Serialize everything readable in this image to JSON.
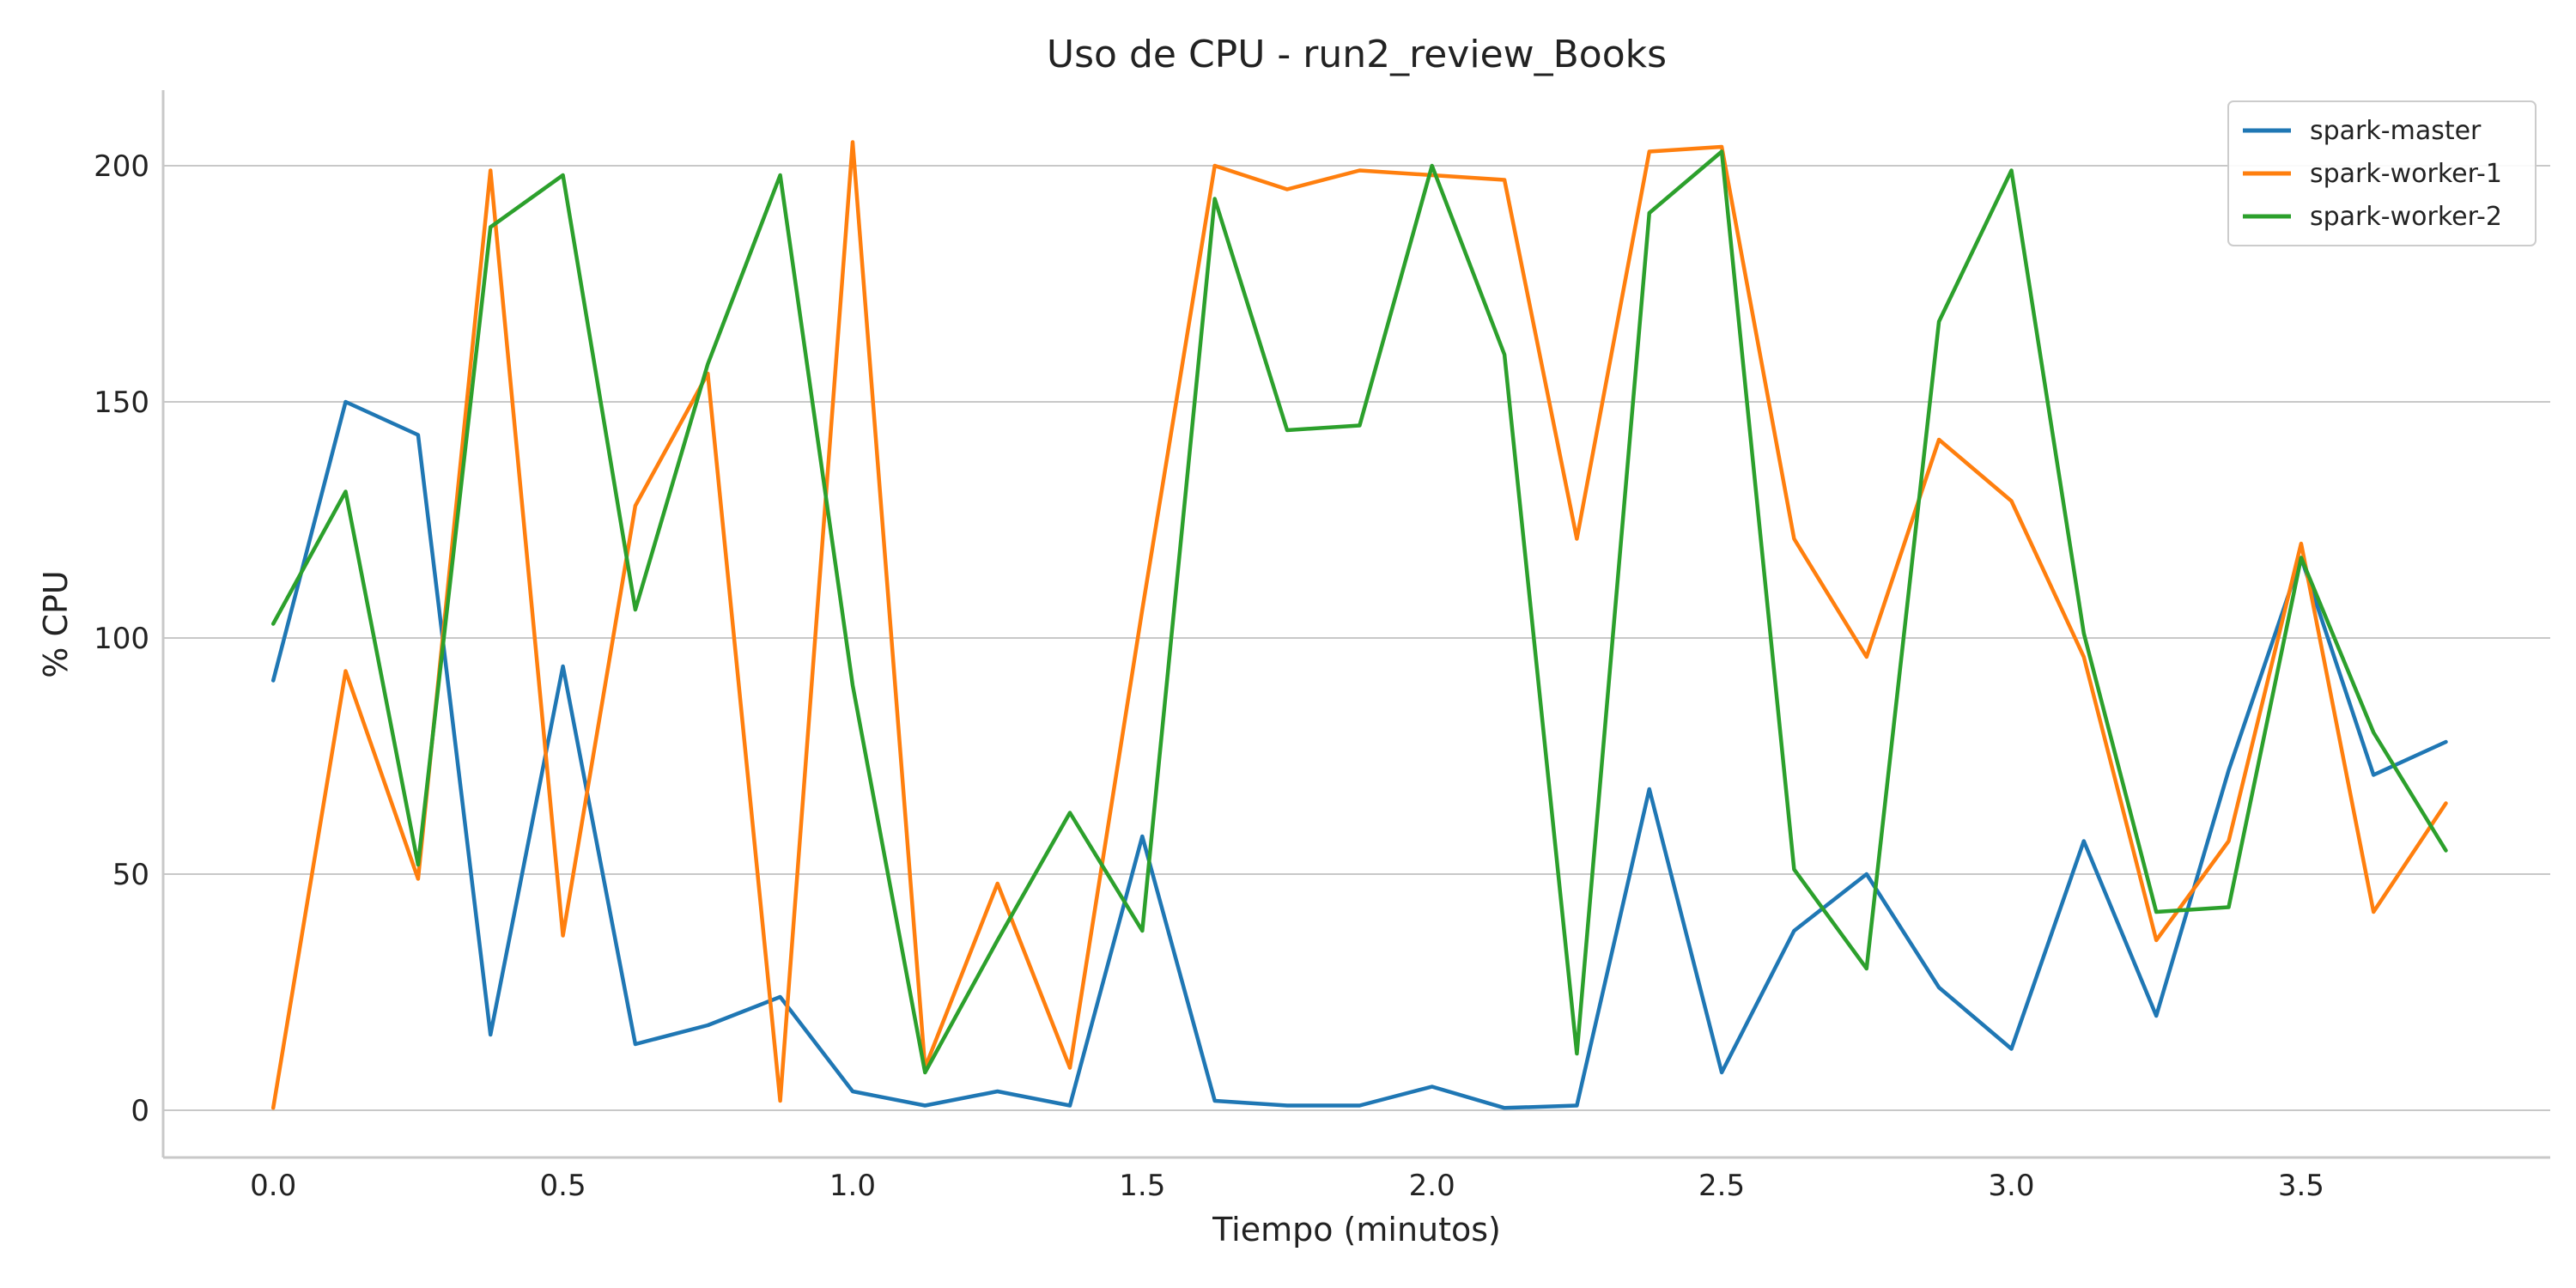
{
  "chart_data": {
    "type": "line",
    "title": "Uso de CPU - run2_review_Books",
    "xlabel": "Tiempo (minutos)",
    "ylabel": "% CPU",
    "xlim": [
      -0.19,
      3.93
    ],
    "ylim": [
      -10,
      216
    ],
    "xticks": [
      0.0,
      0.5,
      1.0,
      1.5,
      2.0,
      2.5,
      3.0,
      3.5
    ],
    "xtick_labels": [
      "0.0",
      "0.5",
      "1.0",
      "1.5",
      "2.0",
      "2.5",
      "3.0",
      "3.5"
    ],
    "yticks": [
      0,
      50,
      100,
      150,
      200
    ],
    "ytick_labels": [
      "0",
      "50",
      "100",
      "150",
      "200"
    ],
    "grid": "horizontal",
    "legend_position": "top-right",
    "x": [
      0.0,
      0.125,
      0.25,
      0.375,
      0.5,
      0.625,
      0.75,
      0.875,
      1.0,
      1.125,
      1.25,
      1.375,
      1.5,
      1.625,
      1.75,
      1.875,
      2.0,
      2.125,
      2.25,
      2.375,
      2.5,
      2.625,
      2.75,
      2.875,
      3.0,
      3.125,
      3.25,
      3.375,
      3.5,
      3.625,
      3.75
    ],
    "series": [
      {
        "name": "spark-master",
        "color": "#1f77b4",
        "values": [
          91,
          150,
          143,
          16,
          94,
          14,
          18,
          24,
          4,
          1,
          4,
          1,
          58,
          2,
          1,
          1,
          5,
          0.5,
          1,
          68,
          8,
          38,
          50,
          26,
          13,
          57,
          20,
          72,
          117,
          71,
          78
        ]
      },
      {
        "name": "spark-worker-1",
        "color": "#ff7f0e",
        "values": [
          0.5,
          93,
          49,
          199,
          37,
          128,
          156,
          2,
          205,
          9,
          48,
          9,
          106,
          200,
          195,
          199,
          198,
          197,
          121,
          203,
          204,
          121,
          96,
          142,
          129,
          96,
          36,
          57,
          120,
          42,
          65
        ]
      },
      {
        "name": "spark-worker-2",
        "color": "#2ca02c",
        "values": [
          103,
          131,
          52,
          187,
          198,
          106,
          158,
          198,
          90,
          8,
          36,
          63,
          38,
          193,
          144,
          145,
          200,
          160,
          12,
          190,
          203,
          51,
          30,
          167,
          199,
          101,
          42,
          43,
          117,
          80,
          55
        ]
      }
    ]
  }
}
